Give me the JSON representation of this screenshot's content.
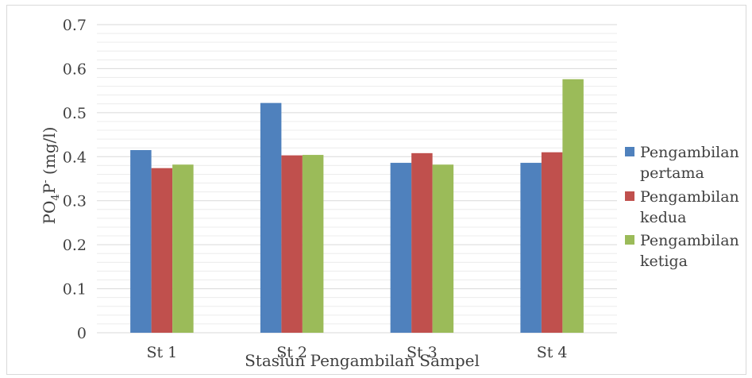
{
  "chart_data": {
    "type": "bar",
    "title": "",
    "xlabel": "Stasiun Pengambilan Sampel",
    "ylabel": {
      "main": "PO",
      "sub": "4",
      "rest": "P",
      "sup": "-",
      "tail": " (mg/l)"
    },
    "categories": [
      "St 1",
      "St 2",
      "St 3",
      "St 4"
    ],
    "ylim": [
      0,
      0.7
    ],
    "yticks": [
      "0",
      "0.1",
      "0.2",
      "0.3",
      "0.4",
      "0.5",
      "0.6",
      "0.7"
    ],
    "minor_grid_step": 0.02,
    "grid": true,
    "legend_position": "right",
    "series": [
      {
        "name_lines": [
          "Pengambilan",
          "pertama"
        ],
        "color": "#4f81bd",
        "values": [
          0.415,
          0.522,
          0.386,
          0.386
        ]
      },
      {
        "name_lines": [
          "Pengambilan",
          "kedua"
        ],
        "color": "#c0504d",
        "values": [
          0.374,
          0.403,
          0.408,
          0.41
        ]
      },
      {
        "name_lines": [
          "Pengambilan",
          "ketiga"
        ],
        "color": "#9bbb59",
        "values": [
          0.382,
          0.404,
          0.382,
          0.576
        ]
      }
    ]
  }
}
